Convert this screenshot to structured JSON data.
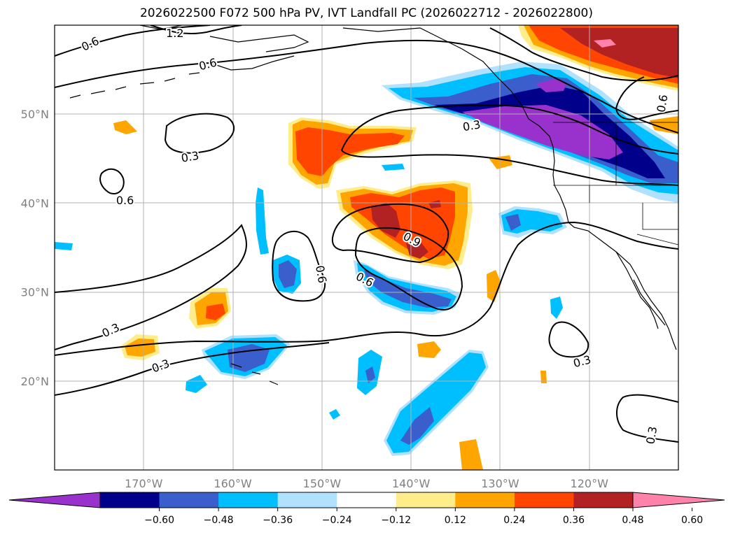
{
  "title": "2026022500 F072 500 hPa PV, IVT Landfall PC (2026022712 - 2026022800)",
  "map": {
    "projection": "PlateCarree",
    "lon_range": [
      -180,
      -110
    ],
    "lat_range": [
      10,
      60
    ],
    "lon_ticks": [
      {
        "lon": -170,
        "label": "170°W"
      },
      {
        "lon": -160,
        "label": "160°W"
      },
      {
        "lon": -150,
        "label": "150°W"
      },
      {
        "lon": -140,
        "label": "140°W"
      },
      {
        "lon": -130,
        "label": "130°W"
      },
      {
        "lon": -120,
        "label": "120°W"
      }
    ],
    "lat_ticks": [
      {
        "lat": 50,
        "label": "50°N"
      },
      {
        "lat": 40,
        "label": "40°N"
      },
      {
        "lat": 30,
        "label": "30°N"
      },
      {
        "lat": 20,
        "label": "20°N"
      }
    ],
    "gridlines": true
  },
  "colorbar": {
    "ticks": [
      "−0.60",
      "−0.48",
      "−0.36",
      "−0.24",
      "−0.12",
      "0.12",
      "0.24",
      "0.36",
      "0.48",
      "0.60"
    ],
    "colors": [
      "#9932cc",
      "#00008b",
      "#3a5fcd",
      "#00bfff",
      "#b0e2ff",
      "#ffffff",
      "#ffec8b",
      "#ffa500",
      "#ff4500",
      "#b22222",
      "#ff82ab"
    ],
    "extend": "both"
  },
  "contour_labels": [
    {
      "text": "1.2",
      "lon": -166.5,
      "lat": 59.1,
      "rot": 0
    },
    {
      "text": "0.6",
      "lon": -176.0,
      "lat": 57.9,
      "rot": -25
    },
    {
      "text": "0.6",
      "lon": -162.8,
      "lat": 55.6,
      "rot": -15
    },
    {
      "text": "0.3",
      "lon": -164.8,
      "lat": 45.2,
      "rot": -10
    },
    {
      "text": "0.6",
      "lon": -172.1,
      "lat": 40.3,
      "rot": 0
    },
    {
      "text": "0.3",
      "lon": -133.2,
      "lat": 48.7,
      "rot": -10
    },
    {
      "text": "0.9",
      "lon": -139.9,
      "lat": 35.9,
      "rot": 28
    },
    {
      "text": "0.6",
      "lon": -150.1,
      "lat": 32.0,
      "rot": 80
    },
    {
      "text": "0.6",
      "lon": -145.2,
      "lat": 31.4,
      "rot": 28
    },
    {
      "text": "0.3",
      "lon": -173.7,
      "lat": 25.7,
      "rot": -25
    },
    {
      "text": "0.3",
      "lon": -168.1,
      "lat": 21.7,
      "rot": -20
    },
    {
      "text": "0.3",
      "lon": -120.8,
      "lat": 22.2,
      "rot": -15
    },
    {
      "text": "0.3",
      "lon": -113.0,
      "lat": 13.9,
      "rot": -80
    },
    {
      "text": "0.6",
      "lon": -111.8,
      "lat": 51.2,
      "rot": -80
    }
  ]
}
